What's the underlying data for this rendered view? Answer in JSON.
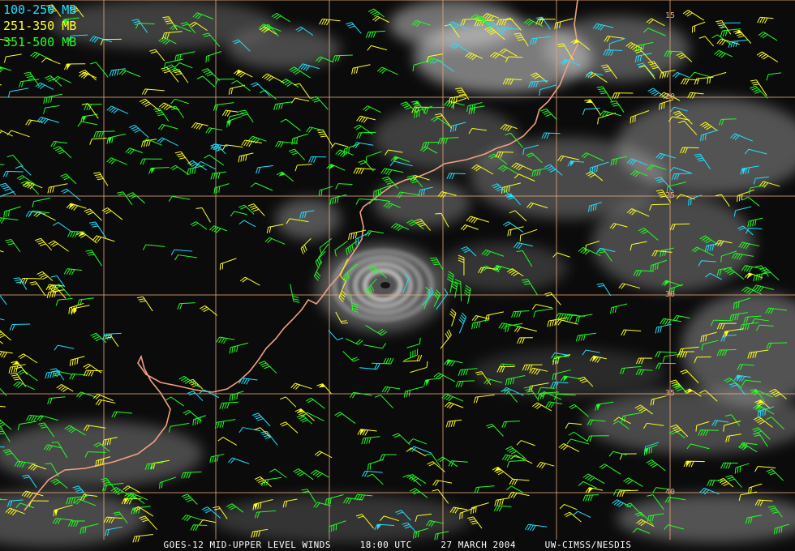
{
  "legend": [
    {
      "label": "100-250 MB",
      "color": "#22e0ff"
    },
    {
      "label": "251-350 MB",
      "color": "#ffff22"
    },
    {
      "label": "351-500 MB",
      "color": "#22ff22"
    }
  ],
  "footer": {
    "product": "GOES-12 MID-UPPER LEVEL WINDS",
    "time": "18:00 UTC",
    "date": "27 MARCH 2004",
    "credit": "UW-CIMSS/NESDIS"
  },
  "latitude_labels": [
    "15",
    "20",
    "25",
    "30",
    "35",
    "40"
  ],
  "colors": {
    "grid": "#e8a878",
    "coast": "#f0a080",
    "cloud": "#d8d8d8",
    "background": "#0b0b0b"
  }
}
